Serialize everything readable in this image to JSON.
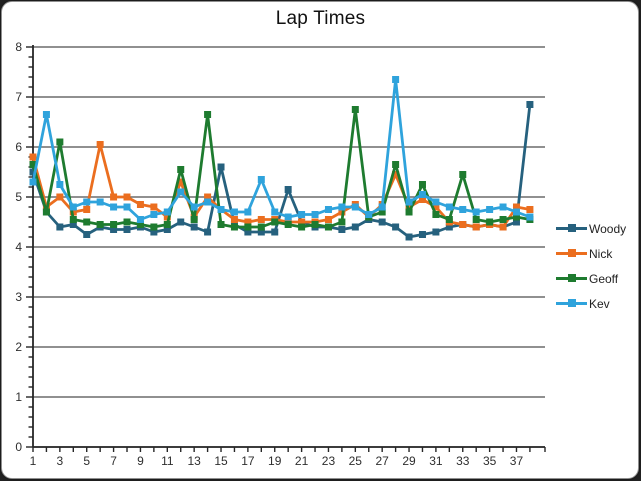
{
  "title": "Lap Times",
  "chart_data": {
    "type": "line",
    "title": "Lap Times",
    "x": [
      1,
      2,
      3,
      4,
      5,
      6,
      7,
      8,
      9,
      10,
      11,
      12,
      13,
      14,
      15,
      16,
      17,
      18,
      19,
      20,
      21,
      22,
      23,
      24,
      25,
      26,
      27,
      28,
      29,
      30,
      31,
      32,
      33,
      34,
      35,
      36,
      37,
      38
    ],
    "xtick_labels": [
      "1",
      "3",
      "5",
      "7",
      "9",
      "11",
      "13",
      "15",
      "17",
      "19",
      "21",
      "23",
      "25",
      "27",
      "29",
      "31",
      "33",
      "35",
      "37"
    ],
    "ylim": [
      0,
      8
    ],
    "ytick_step": 1,
    "y_minor_step": 0.2,
    "grid": "horizontal-major",
    "legend_position": "right",
    "marker": "square",
    "axis_color": "#262626",
    "grid_color": "#4d4d4d",
    "tick_label_color": "#2e2e2e",
    "background_color": "#ffffff",
    "series": [
      {
        "name": "Woody",
        "color": "#26617E",
        "values": [
          5.5,
          4.7,
          4.4,
          4.45,
          4.25,
          4.4,
          4.35,
          4.35,
          4.4,
          4.3,
          4.35,
          4.5,
          4.4,
          4.3,
          5.6,
          4.45,
          4.3,
          4.3,
          4.3,
          5.15,
          4.5,
          4.4,
          4.4,
          4.35,
          4.4,
          4.55,
          4.5,
          4.4,
          4.2,
          4.25,
          4.3,
          4.4,
          4.45,
          4.4,
          4.45,
          4.4,
          4.5,
          6.85
        ]
      },
      {
        "name": "Nick",
        "color": "#EB6E1F",
        "values": [
          5.8,
          4.8,
          5.0,
          4.7,
          4.75,
          6.05,
          5.0,
          5.0,
          4.85,
          4.8,
          4.6,
          5.3,
          4.6,
          5.0,
          4.75,
          4.55,
          4.5,
          4.55,
          4.55,
          4.5,
          4.5,
          4.5,
          4.55,
          4.7,
          4.85,
          4.6,
          4.85,
          5.45,
          4.8,
          4.95,
          4.8,
          4.5,
          4.45,
          4.4,
          4.45,
          4.4,
          4.8,
          4.75
        ]
      },
      {
        "name": "Geoff",
        "color": "#1E7B2F",
        "values": [
          5.65,
          4.7,
          6.1,
          4.55,
          4.5,
          4.45,
          4.45,
          4.5,
          4.45,
          4.4,
          4.45,
          5.55,
          4.55,
          6.65,
          4.45,
          4.4,
          4.4,
          4.4,
          4.5,
          4.45,
          4.4,
          4.45,
          4.4,
          4.5,
          6.75,
          4.6,
          4.7,
          5.65,
          4.7,
          5.25,
          4.65,
          4.55,
          5.45,
          4.55,
          4.5,
          4.55,
          4.6,
          4.55
        ]
      },
      {
        "name": "Kev",
        "color": "#2FA3DC",
        "values": [
          5.3,
          6.65,
          5.25,
          4.8,
          4.9,
          4.9,
          4.8,
          4.8,
          4.55,
          4.65,
          4.7,
          5.1,
          4.8,
          4.9,
          4.75,
          4.7,
          4.7,
          5.35,
          4.7,
          4.6,
          4.65,
          4.65,
          4.75,
          4.8,
          4.8,
          4.65,
          4.8,
          7.35,
          4.9,
          5.05,
          4.9,
          4.8,
          4.75,
          4.7,
          4.75,
          4.8,
          4.7,
          4.6
        ]
      }
    ]
  }
}
